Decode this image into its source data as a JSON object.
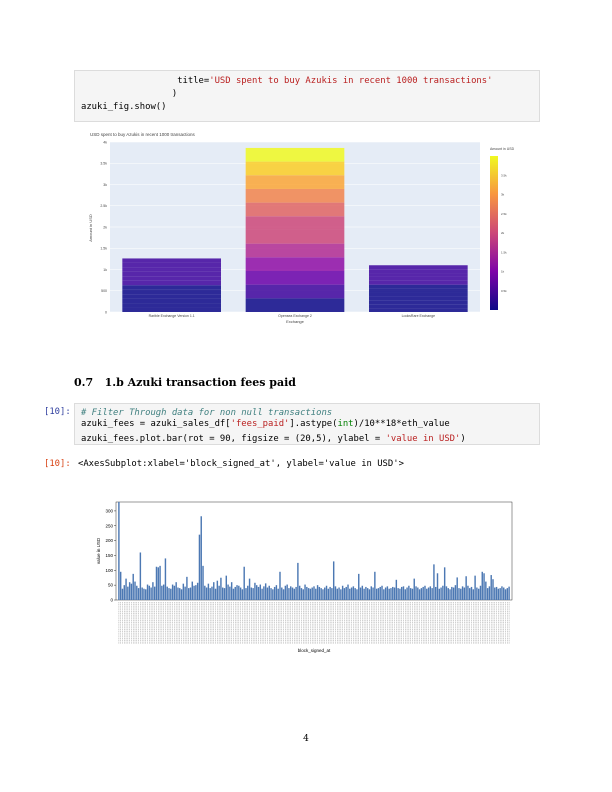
{
  "cell_top": {
    "line1_indent": "                  ",
    "line1_key": "title=",
    "line1_str": "'USD spent to buy Azukis in recent 1000 transactions'",
    "line2": "                 )",
    "line3": "azuki_fig.show()"
  },
  "plotly_chart": {
    "title": "USD spent to buy Azukis in recent 1000 transactions",
    "xlabel": "Exchange",
    "ylabel": "Amount in USD",
    "colorbar_title": "Amount in USD",
    "chart_data": {
      "type": "bar",
      "categories": [
        "Rarible Exchange Version 1.1",
        "Opensea Exchange 2",
        "LooksRare Exchange"
      ],
      "values": [
        1260,
        3860,
        1100
      ],
      "ylim": [
        0,
        4000
      ]
    }
  },
  "section": {
    "number": "0.7",
    "title": "1.b Azuki transaction fees paid"
  },
  "cell_fees": {
    "prompt": "[10]:",
    "comment": "# Filter Through data for non null transactions",
    "line2_a": "azuki_fees = azuki_sales_df[",
    "line2_str": "'fees_paid'",
    "line2_b": "].astype(",
    "line2_bi": "int",
    "line2_c": ")/10**18*eth_value",
    "line4_a": "azuki_fees.plot.bar(rot = 90, figsize = (20,5), ylabel = ",
    "line4_str": "'value in USD'",
    "line4_b": ")"
  },
  "output": {
    "prompt": "[10]:",
    "text": "<AxesSubplot:xlabel='block_signed_at', ylabel='value in USD'>"
  },
  "fees_chart": {
    "xlabel": "block_signed_at",
    "ylabel": "value in USD",
    "chart_data": {
      "type": "bar",
      "yticks": [
        0,
        50,
        100,
        150,
        200,
        250,
        300
      ],
      "ylim": [
        0,
        330
      ],
      "values": [
        330,
        95,
        38,
        50,
        72,
        45,
        60,
        55,
        88,
        62,
        48,
        40,
        160,
        42,
        38,
        36,
        52,
        48,
        42,
        60,
        45,
        112,
        110,
        115,
        48,
        52,
        140,
        45,
        40,
        38,
        52,
        48,
        60,
        42,
        40,
        36,
        55,
        45,
        78,
        40,
        42,
        62,
        48,
        50,
        58,
        220,
        282,
        115,
        48,
        42,
        55,
        40,
        45,
        60,
        38,
        65,
        48,
        75,
        42,
        40,
        82,
        52,
        45,
        60,
        38,
        44,
        50,
        48,
        42,
        36,
        112,
        40,
        48,
        72,
        42,
        40,
        58,
        50,
        44,
        52,
        38,
        46,
        56,
        42,
        48,
        40,
        36,
        44,
        50,
        38,
        95,
        42,
        36,
        48,
        52,
        40,
        46,
        42,
        38,
        44,
        125,
        48,
        40,
        36,
        52,
        44,
        40,
        38,
        42,
        46,
        38,
        50,
        44,
        40,
        36,
        42,
        48,
        38,
        44,
        40,
        130,
        46,
        38,
        42,
        36,
        48,
        40,
        44,
        52,
        38,
        42,
        46,
        40,
        36,
        88,
        42,
        48,
        38,
        44,
        40,
        36,
        46,
        42,
        95,
        38,
        40,
        44,
        48,
        36,
        42,
        46,
        38,
        40,
        44,
        42,
        68,
        40,
        38,
        44,
        46,
        36,
        42,
        48,
        40,
        38,
        72,
        46,
        42,
        36,
        40,
        44,
        48,
        38,
        42,
        46,
        40,
        120,
        44,
        90,
        38,
        42,
        48,
        110,
        46,
        40,
        36,
        44,
        42,
        50,
        76,
        40,
        38,
        46,
        42,
        80,
        48,
        40,
        44,
        36,
        82,
        42,
        38,
        48,
        95,
        90,
        62,
        40,
        46,
        84,
        70,
        42,
        44,
        38,
        40,
        46,
        42,
        36,
        40,
        45
      ]
    }
  },
  "page_number": "4"
}
